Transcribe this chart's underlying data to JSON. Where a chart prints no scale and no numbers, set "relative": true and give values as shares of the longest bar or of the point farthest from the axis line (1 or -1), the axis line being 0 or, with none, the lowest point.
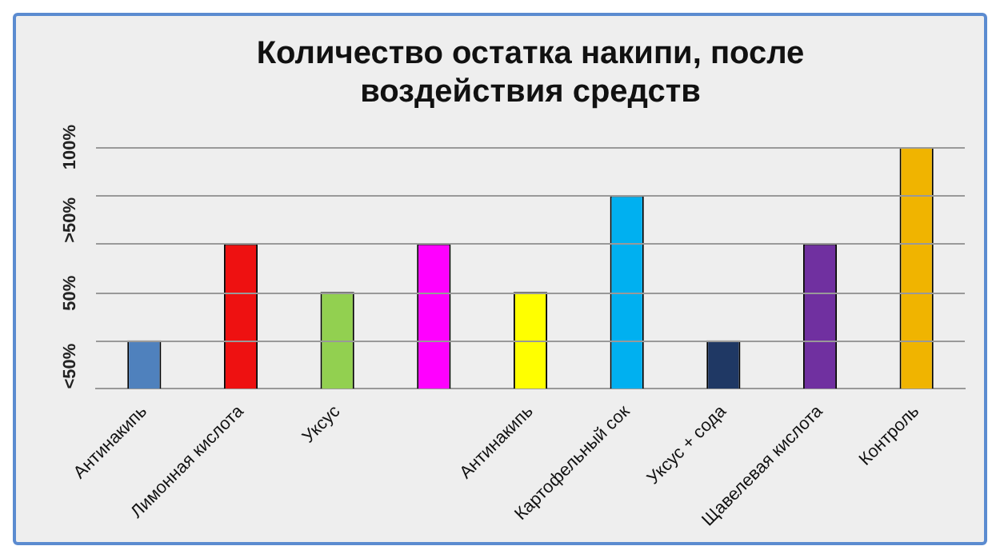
{
  "chart_data": {
    "type": "bar",
    "title": [
      "Количество остатка накипи, после",
      "воздействия средств"
    ],
    "categories": [
      "Антинакипь",
      "Лимонная кислота",
      "Уксус",
      null,
      "Антинакипь",
      "Картофельный сок",
      "Уксус + сода",
      "Щавелевая кислота",
      "Контроль"
    ],
    "values": [
      0.2,
      0.6,
      0.4,
      0.6,
      0.4,
      0.8,
      0.2,
      0.6,
      1
    ],
    "colors": [
      "#4f81bd",
      "#ee1111",
      "#92d050",
      "#ff00ff",
      "#ffff00",
      "#00b0f0",
      "#1f3864",
      "#7030a0",
      "#f0b400"
    ],
    "relative": true,
    "annotations": [
      "<50%",
      "50%",
      ">50%",
      "100%"
    ],
    "grid": "y",
    "legend": false
  }
}
